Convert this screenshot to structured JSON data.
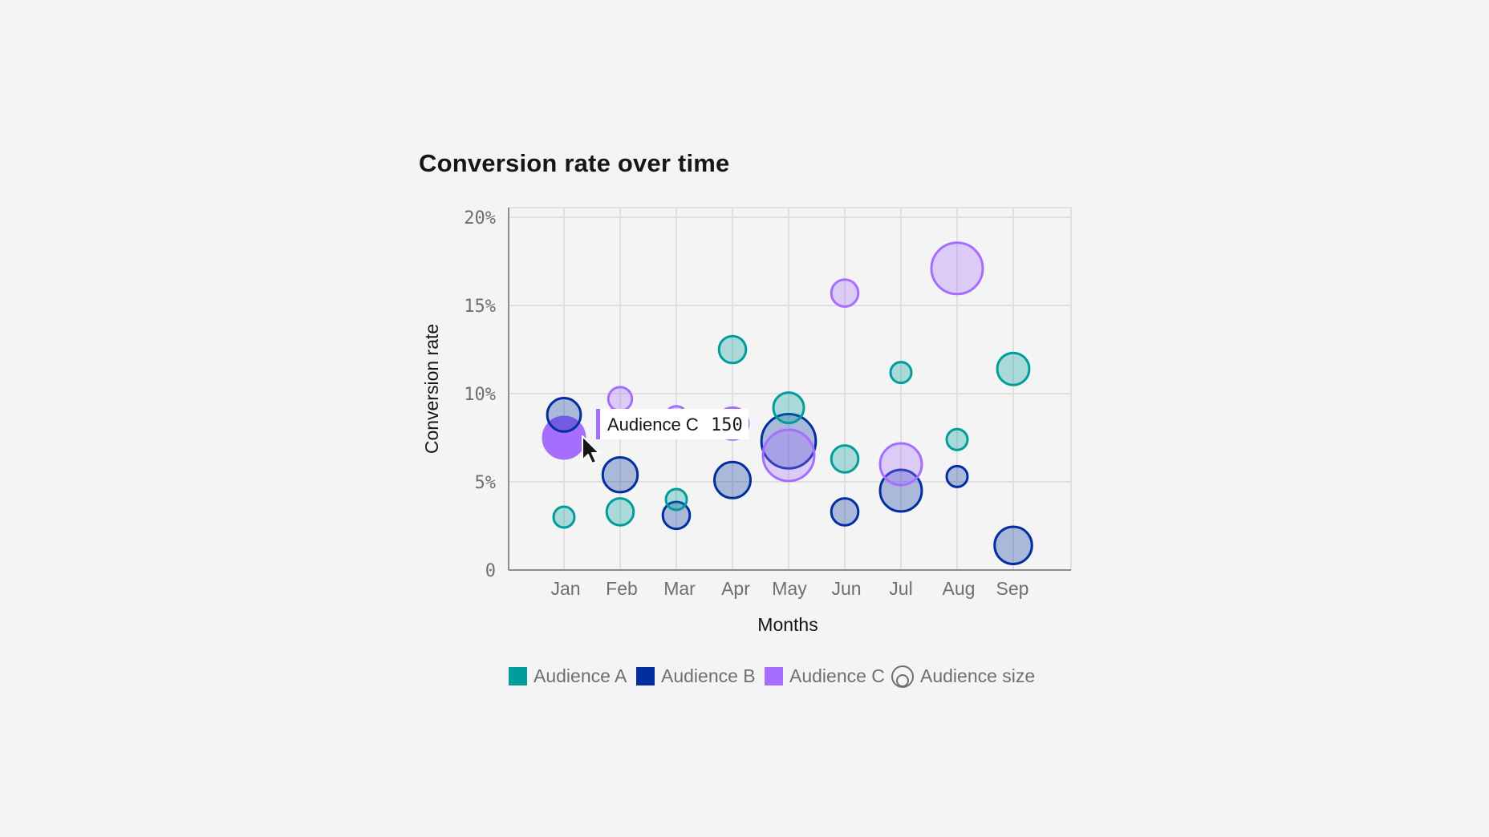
{
  "chart_data": {
    "type": "scatter",
    "title": "Conversion rate over time",
    "xlabel": "Months",
    "ylabel": "Conversion rate",
    "categories": [
      "Jan",
      "Feb",
      "Mar",
      "Apr",
      "May",
      "Jun",
      "Jul",
      "Aug",
      "Sep"
    ],
    "y_ticks": [
      "0",
      "5%",
      "10%",
      "15%",
      "20%"
    ],
    "ylim": [
      0,
      20
    ],
    "grid": true,
    "legend_position": "bottom",
    "series": [
      {
        "name": "Audience A",
        "color": "#009d9a",
        "points": [
          {
            "x": "Jan",
            "y": 3.0,
            "size": 15
          },
          {
            "x": "Feb",
            "y": 3.3,
            "size": 40
          },
          {
            "x": "Mar",
            "y": 4.0,
            "size": 15
          },
          {
            "x": "Apr",
            "y": 12.5,
            "size": 40
          },
          {
            "x": "May",
            "y": 9.2,
            "size": 60
          },
          {
            "x": "Jun",
            "y": 6.3,
            "size": 40
          },
          {
            "x": "Jul",
            "y": 11.2,
            "size": 15
          },
          {
            "x": "Aug",
            "y": 7.4,
            "size": 15
          },
          {
            "x": "Sep",
            "y": 11.4,
            "size": 70
          }
        ]
      },
      {
        "name": "Audience B",
        "color": "#012fa0",
        "points": [
          {
            "x": "Jan",
            "y": 8.8,
            "size": 80
          },
          {
            "x": "Feb",
            "y": 5.4,
            "size": 90
          },
          {
            "x": "Mar",
            "y": 3.1,
            "size": 40
          },
          {
            "x": "Apr",
            "y": 5.1,
            "size": 100
          },
          {
            "x": "May",
            "y": 7.3,
            "size": 300
          },
          {
            "x": "Jun",
            "y": 3.3,
            "size": 40
          },
          {
            "x": "Jul",
            "y": 4.5,
            "size": 150
          },
          {
            "x": "Aug",
            "y": 5.3,
            "size": 15
          },
          {
            "x": "Sep",
            "y": 1.4,
            "size": 110
          }
        ]
      },
      {
        "name": "Audience C",
        "color": "#a56eff",
        "points": [
          {
            "x": "Jan",
            "y": 7.5,
            "size": 150
          },
          {
            "x": "Feb",
            "y": 9.7,
            "size": 25
          },
          {
            "x": "Mar",
            "y": 8.7,
            "size": 15
          },
          {
            "x": "Apr",
            "y": 8.3,
            "size": 70
          },
          {
            "x": "May",
            "y": 6.5,
            "size": 260
          },
          {
            "x": "Jun",
            "y": 15.7,
            "size": 40
          },
          {
            "x": "Jul",
            "y": 6.0,
            "size": 150
          },
          {
            "x": "Aug",
            "y": 17.1,
            "size": 260
          },
          {
            "x": "Sep",
            "y": null,
            "size": null
          }
        ]
      }
    ],
    "legend": [
      {
        "label": "Audience A",
        "color": "#009d9a"
      },
      {
        "label": "Audience B",
        "color": "#012fa0"
      },
      {
        "label": "Audience C",
        "color": "#a56eff"
      },
      {
        "label": "Audience size",
        "icon": "bubble-size-icon"
      }
    ],
    "tooltip": {
      "series": "Audience C",
      "value": "150",
      "color": "#a56eff",
      "hovered_point": {
        "x": "Jan",
        "y": 7.5
      }
    }
  }
}
